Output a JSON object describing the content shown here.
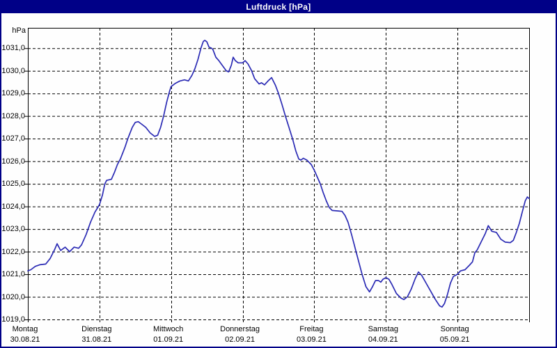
{
  "window": {
    "title": "Luftdruck [hPa]"
  },
  "colors": {
    "frame_and_titlebar": "#000087",
    "title_text": "#ffffff",
    "plot_background": "#fefefe",
    "grid": "#000000",
    "line": "#2a2ab4",
    "axis_text": "#000000"
  },
  "chart_data": {
    "type": "line",
    "title": "Luftdruck [hPa]",
    "ylabel": "hPa",
    "legend": "none",
    "grid": "dashed black; horizontal every 1.0 hPa, vertical at each day boundary",
    "x_unit": "hours since Monday 30.08.21 00:00",
    "xlim": [
      0,
      168
    ],
    "ylim": [
      1019.0,
      1031.9
    ],
    "yticks": [
      1031,
      1030,
      1029,
      1028,
      1027,
      1026,
      1025,
      1024,
      1023,
      1022,
      1021,
      1020,
      1019
    ],
    "ytick_labels": [
      "1031,0",
      "1030,0",
      "1029,0",
      "1028,0",
      "1027,0",
      "1026,0",
      "1025,0",
      "1024,0",
      "1023,0",
      "1022,0",
      "1021,0",
      "1020,0",
      "1019,0"
    ],
    "days": [
      {
        "name": "Montag",
        "date": "30.08.21"
      },
      {
        "name": "Dienstag",
        "date": "31.08.21"
      },
      {
        "name": "Mittwoch",
        "date": "01.09.21"
      },
      {
        "name": "Donnerstag",
        "date": "02.09.21"
      },
      {
        "name": "Freitag",
        "date": "03.09.21"
      },
      {
        "name": "Samstag",
        "date": "04.09.21"
      },
      {
        "name": "Sonntag",
        "date": "05.09.21"
      }
    ],
    "series": [
      {
        "name": "Luftdruck",
        "unit": "hPa",
        "points_hour_hpa": [
          [
            0,
            1021.15
          ],
          [
            1,
            1021.2
          ],
          [
            2.5,
            1021.35
          ],
          [
            4,
            1021.42
          ],
          [
            6,
            1021.45
          ],
          [
            7.5,
            1021.7
          ],
          [
            9,
            1022.1
          ],
          [
            9.8,
            1022.35
          ],
          [
            11,
            1022.05
          ],
          [
            12.5,
            1022.2
          ],
          [
            14,
            1022.0
          ],
          [
            15.5,
            1022.2
          ],
          [
            17,
            1022.15
          ],
          [
            18,
            1022.3
          ],
          [
            19.5,
            1022.75
          ],
          [
            21,
            1023.3
          ],
          [
            22.5,
            1023.75
          ],
          [
            24,
            1024.08
          ],
          [
            25,
            1024.5
          ],
          [
            25.8,
            1025.0
          ],
          [
            26.4,
            1025.15
          ],
          [
            28,
            1025.2
          ],
          [
            29,
            1025.5
          ],
          [
            30,
            1025.85
          ],
          [
            31,
            1026.1
          ],
          [
            32.5,
            1026.6
          ],
          [
            33.5,
            1027.0
          ],
          [
            35,
            1027.5
          ],
          [
            36,
            1027.72
          ],
          [
            37,
            1027.75
          ],
          [
            38,
            1027.65
          ],
          [
            39.5,
            1027.5
          ],
          [
            41,
            1027.25
          ],
          [
            42.5,
            1027.1
          ],
          [
            43.5,
            1027.15
          ],
          [
            44.5,
            1027.5
          ],
          [
            45.5,
            1028.0
          ],
          [
            46.5,
            1028.6
          ],
          [
            47.5,
            1029.1
          ],
          [
            48,
            1029.3
          ],
          [
            49.5,
            1029.45
          ],
          [
            51,
            1029.55
          ],
          [
            52.5,
            1029.6
          ],
          [
            53.8,
            1029.55
          ],
          [
            55,
            1029.8
          ],
          [
            56,
            1030.1
          ],
          [
            57,
            1030.5
          ],
          [
            58,
            1031.0
          ],
          [
            58.8,
            1031.3
          ],
          [
            59.3,
            1031.35
          ],
          [
            60,
            1031.28
          ],
          [
            60.7,
            1031.05
          ],
          [
            61.5,
            1031.0
          ],
          [
            62,
            1030.95
          ],
          [
            63,
            1030.6
          ],
          [
            64,
            1030.45
          ],
          [
            65.5,
            1030.18
          ],
          [
            66.5,
            1030.0
          ],
          [
            67.3,
            1029.95
          ],
          [
            68.2,
            1030.25
          ],
          [
            68.8,
            1030.6
          ],
          [
            69.5,
            1030.45
          ],
          [
            70.5,
            1030.35
          ],
          [
            72,
            1030.35
          ],
          [
            72.8,
            1030.45
          ],
          [
            73.8,
            1030.3
          ],
          [
            75,
            1030.0
          ],
          [
            76,
            1029.65
          ],
          [
            77.5,
            1029.42
          ],
          [
            78.3,
            1029.47
          ],
          [
            79.3,
            1029.38
          ],
          [
            80.5,
            1029.55
          ],
          [
            81.7,
            1029.7
          ],
          [
            83,
            1029.35
          ],
          [
            84,
            1029.0
          ],
          [
            85.2,
            1028.5
          ],
          [
            86.3,
            1028.0
          ],
          [
            87.5,
            1027.5
          ],
          [
            88.7,
            1027.0
          ],
          [
            89.8,
            1026.45
          ],
          [
            90.8,
            1026.1
          ],
          [
            91.5,
            1026.05
          ],
          [
            92.3,
            1026.13
          ],
          [
            93.5,
            1026.05
          ],
          [
            95,
            1025.85
          ],
          [
            96,
            1025.6
          ],
          [
            97,
            1025.3
          ],
          [
            98,
            1025.0
          ],
          [
            99,
            1024.6
          ],
          [
            100,
            1024.25
          ],
          [
            101,
            1023.95
          ],
          [
            102,
            1023.82
          ],
          [
            104,
            1023.8
          ],
          [
            105.3,
            1023.78
          ],
          [
            106.3,
            1023.6
          ],
          [
            107.3,
            1023.3
          ],
          [
            108.5,
            1022.75
          ],
          [
            110,
            1022.0
          ],
          [
            111,
            1021.5
          ],
          [
            112,
            1021.0
          ],
          [
            113.3,
            1020.45
          ],
          [
            114.5,
            1020.22
          ],
          [
            115.5,
            1020.45
          ],
          [
            116.5,
            1020.72
          ],
          [
            117.5,
            1020.72
          ],
          [
            118.3,
            1020.65
          ],
          [
            119,
            1020.78
          ],
          [
            120,
            1020.85
          ],
          [
            121,
            1020.78
          ],
          [
            122,
            1020.55
          ],
          [
            123.5,
            1020.15
          ],
          [
            125,
            1019.95
          ],
          [
            126,
            1019.88
          ],
          [
            127.2,
            1020.0
          ],
          [
            128.5,
            1020.35
          ],
          [
            129.8,
            1020.8
          ],
          [
            130.9,
            1021.1
          ],
          [
            132,
            1020.95
          ],
          [
            133.5,
            1020.6
          ],
          [
            135,
            1020.25
          ],
          [
            136.5,
            1019.9
          ],
          [
            138,
            1019.6
          ],
          [
            138.8,
            1019.55
          ],
          [
            139.6,
            1019.7
          ],
          [
            140.6,
            1020.1
          ],
          [
            141.6,
            1020.6
          ],
          [
            142.6,
            1020.9
          ],
          [
            144,
            1021.0
          ],
          [
            145,
            1021.15
          ],
          [
            146.5,
            1021.2
          ],
          [
            148,
            1021.4
          ],
          [
            149,
            1021.55
          ],
          [
            149.8,
            1021.95
          ],
          [
            150.6,
            1022.08
          ],
          [
            152,
            1022.45
          ],
          [
            153.3,
            1022.8
          ],
          [
            154.3,
            1023.15
          ],
          [
            155.5,
            1022.9
          ],
          [
            157,
            1022.85
          ],
          [
            158.5,
            1022.55
          ],
          [
            160,
            1022.42
          ],
          [
            161.7,
            1022.4
          ],
          [
            162.7,
            1022.5
          ],
          [
            163.7,
            1022.85
          ],
          [
            164.7,
            1023.25
          ],
          [
            165.7,
            1023.75
          ],
          [
            166.7,
            1024.25
          ],
          [
            167.4,
            1024.42
          ],
          [
            168,
            1024.35
          ]
        ]
      }
    ]
  }
}
